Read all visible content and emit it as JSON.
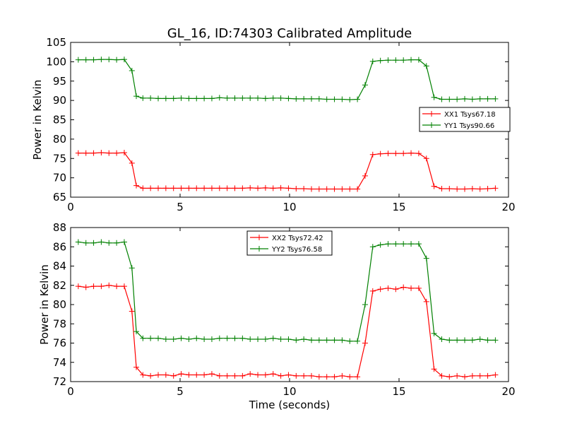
{
  "title": "GL_16, ID:74303 Calibrated Amplitude",
  "chart_data": [
    {
      "type": "line",
      "ylabel": "Power in Kelvin",
      "xlabel": "",
      "xlim": [
        0,
        20
      ],
      "ylim": [
        65,
        105
      ],
      "xticks": [
        0,
        5,
        10,
        15,
        20
      ],
      "yticks": [
        65,
        70,
        75,
        80,
        85,
        90,
        95,
        100,
        105
      ],
      "legend_position": "right",
      "grid": false,
      "x": [
        0.35,
        0.7,
        1.05,
        1.4,
        1.75,
        2.1,
        2.45,
        2.8,
        3.0,
        3.3,
        3.65,
        4.0,
        4.35,
        4.7,
        5.05,
        5.4,
        5.75,
        6.1,
        6.45,
        6.8,
        7.15,
        7.5,
        7.85,
        8.2,
        8.55,
        8.9,
        9.25,
        9.6,
        9.95,
        10.3,
        10.65,
        11.0,
        11.35,
        11.7,
        12.05,
        12.4,
        12.75,
        13.1,
        13.45,
        13.8,
        14.15,
        14.5,
        14.85,
        15.2,
        15.55,
        15.9,
        16.25,
        16.6,
        16.95,
        17.3,
        17.65,
        18.0,
        18.35,
        18.7,
        19.05,
        19.4
      ],
      "series": [
        {
          "name": "XX1 Tsys67.18",
          "color": "#ff0000",
          "values": [
            76.4,
            76.4,
            76.4,
            76.5,
            76.4,
            76.4,
            76.5,
            73.8,
            68.0,
            67.3,
            67.3,
            67.3,
            67.3,
            67.3,
            67.3,
            67.3,
            67.3,
            67.3,
            67.3,
            67.3,
            67.3,
            67.3,
            67.3,
            67.4,
            67.3,
            67.4,
            67.3,
            67.4,
            67.3,
            67.2,
            67.2,
            67.1,
            67.1,
            67.1,
            67.1,
            67.1,
            67.1,
            67.1,
            70.5,
            76.0,
            76.2,
            76.3,
            76.3,
            76.3,
            76.4,
            76.3,
            75.0,
            67.8,
            67.2,
            67.2,
            67.1,
            67.1,
            67.2,
            67.1,
            67.2,
            67.3
          ]
        },
        {
          "name": "YY1 Tsys90.66",
          "color": "#008000",
          "values": [
            100.5,
            100.5,
            100.5,
            100.6,
            100.6,
            100.5,
            100.6,
            97.7,
            91.1,
            90.6,
            90.6,
            90.5,
            90.5,
            90.5,
            90.6,
            90.5,
            90.5,
            90.5,
            90.5,
            90.7,
            90.6,
            90.6,
            90.6,
            90.6,
            90.6,
            90.5,
            90.6,
            90.6,
            90.5,
            90.4,
            90.4,
            90.4,
            90.4,
            90.3,
            90.3,
            90.3,
            90.2,
            90.3,
            94.0,
            100.1,
            100.3,
            100.4,
            100.4,
            100.4,
            100.5,
            100.5,
            98.9,
            90.8,
            90.3,
            90.3,
            90.3,
            90.4,
            90.3,
            90.4,
            90.4,
            90.4
          ]
        }
      ]
    },
    {
      "type": "line",
      "ylabel": "Power in Kelvin",
      "xlabel": "Time (seconds)",
      "xlim": [
        0,
        20
      ],
      "ylim": [
        72,
        88
      ],
      "xticks": [
        0,
        5,
        10,
        15,
        20
      ],
      "yticks": [
        72,
        74,
        76,
        78,
        80,
        82,
        84,
        86,
        88
      ],
      "legend_position": "top-center",
      "grid": false,
      "x": [
        0.35,
        0.7,
        1.05,
        1.4,
        1.75,
        2.1,
        2.45,
        2.8,
        3.0,
        3.3,
        3.65,
        4.0,
        4.35,
        4.7,
        5.05,
        5.4,
        5.75,
        6.1,
        6.45,
        6.8,
        7.15,
        7.5,
        7.85,
        8.2,
        8.55,
        8.9,
        9.25,
        9.6,
        9.95,
        10.3,
        10.65,
        11.0,
        11.35,
        11.7,
        12.05,
        12.4,
        12.75,
        13.1,
        13.45,
        13.8,
        14.15,
        14.5,
        14.85,
        15.2,
        15.55,
        15.9,
        16.25,
        16.6,
        16.95,
        17.3,
        17.65,
        18.0,
        18.35,
        18.7,
        19.05,
        19.4
      ],
      "series": [
        {
          "name": "XX2 Tsys72.42",
          "color": "#ff0000",
          "values": [
            81.9,
            81.8,
            81.9,
            81.9,
            82.0,
            81.9,
            81.9,
            79.3,
            73.5,
            72.7,
            72.6,
            72.7,
            72.7,
            72.6,
            72.8,
            72.7,
            72.7,
            72.7,
            72.8,
            72.6,
            72.6,
            72.6,
            72.6,
            72.8,
            72.7,
            72.7,
            72.8,
            72.6,
            72.7,
            72.6,
            72.6,
            72.6,
            72.5,
            72.5,
            72.5,
            72.6,
            72.5,
            72.5,
            76.0,
            81.4,
            81.6,
            81.7,
            81.6,
            81.8,
            81.7,
            81.7,
            80.3,
            73.3,
            72.6,
            72.5,
            72.6,
            72.5,
            72.6,
            72.6,
            72.6,
            72.7
          ]
        },
        {
          "name": "YY2 Tsys76.58",
          "color": "#008000",
          "values": [
            86.5,
            86.4,
            86.4,
            86.5,
            86.4,
            86.4,
            86.5,
            83.8,
            77.2,
            76.5,
            76.5,
            76.5,
            76.4,
            76.4,
            76.5,
            76.4,
            76.5,
            76.4,
            76.4,
            76.5,
            76.5,
            76.5,
            76.5,
            76.4,
            76.4,
            76.4,
            76.5,
            76.4,
            76.4,
            76.3,
            76.4,
            76.3,
            76.3,
            76.3,
            76.3,
            76.3,
            76.2,
            76.2,
            80.0,
            86.0,
            86.2,
            86.3,
            86.3,
            86.3,
            86.3,
            86.3,
            84.8,
            77.0,
            76.4,
            76.3,
            76.3,
            76.3,
            76.3,
            76.4,
            76.3,
            76.3
          ]
        }
      ]
    }
  ]
}
